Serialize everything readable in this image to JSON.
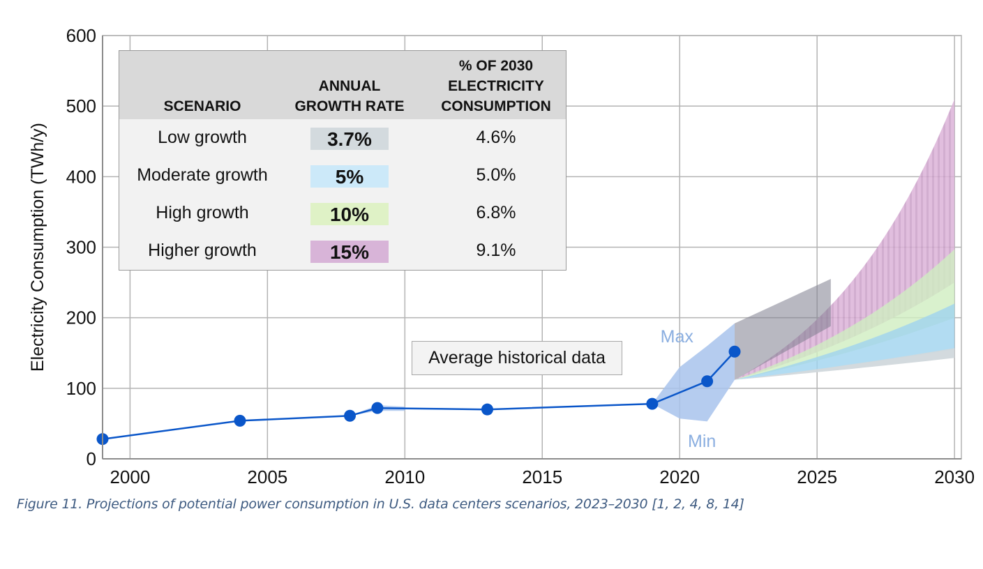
{
  "chart_data": {
    "type": "line",
    "caption": "Figure 11. Projections of potential power consumption in U.S. data centers scenarios, 2023–2030 [1, 2, 4, 8, 14]",
    "ylabel": "Electricity Consumption (TWh/y)",
    "xlim": [
      1999,
      2030.25
    ],
    "ylim": [
      0,
      600
    ],
    "x_ticks": [
      {
        "value": 2000,
        "label": "2000"
      },
      {
        "value": 2005,
        "label": "2005"
      },
      {
        "value": 2010,
        "label": "2010"
      },
      {
        "value": 2015,
        "label": "2015"
      },
      {
        "value": 2020,
        "label": "2020"
      },
      {
        "value": 2025,
        "label": "2025"
      },
      {
        "value": 2030,
        "label": "2030"
      }
    ],
    "y_ticks": [
      {
        "value": 0,
        "label": "0"
      },
      {
        "value": 100,
        "label": "100"
      },
      {
        "value": 200,
        "label": "200"
      },
      {
        "value": 300,
        "label": "300"
      },
      {
        "value": 400,
        "label": "400"
      },
      {
        "value": 500,
        "label": "500"
      },
      {
        "value": 600,
        "label": "600"
      }
    ],
    "grid": true,
    "historical": {
      "name": "Average historical data",
      "color": "#0a56c9",
      "points": [
        {
          "x": 1999,
          "y": 28
        },
        {
          "x": 2004,
          "y": 54
        },
        {
          "x": 2008,
          "y": 61
        },
        {
          "x": 2009,
          "y": 72
        },
        {
          "x": 2013,
          "y": 70
        },
        {
          "x": 2019,
          "y": 78
        },
        {
          "x": 2021,
          "y": 110
        },
        {
          "x": 2022,
          "y": 152
        }
      ]
    },
    "small_band": {
      "color": "#b4cbef",
      "x": [
        2008,
        2009,
        2010
      ],
      "low": [
        61,
        68,
        68
      ],
      "high": [
        61,
        76,
        74
      ]
    },
    "uncertainty_band": {
      "color": "#a8c3ec",
      "max_label": "Max",
      "min_label": "Min",
      "x": [
        2019,
        2020,
        2021,
        2022
      ],
      "low": [
        78,
        57,
        53,
        112
      ],
      "high": [
        78,
        130,
        160,
        192
      ]
    },
    "scenarios": [
      {
        "name": "Low growth",
        "rate": "3.7%",
        "share_2030": "4.6%",
        "color": "#d1d8dc",
        "x": [
          2022,
          2030
        ],
        "low": [
          112,
          143
        ],
        "high": [
          112,
          157
        ]
      },
      {
        "name": "Moderate growth",
        "rate": "5%",
        "share_2030": "5.0%",
        "color": "#9fd3ef",
        "x": [
          2022,
          2030
        ],
        "low": [
          112,
          155
        ],
        "high": [
          112,
          220
        ]
      },
      {
        "name": "High growth",
        "rate": "10%",
        "share_2030": "6.8%",
        "color": "#d0eec0",
        "x": [
          2022,
          2030
        ],
        "low": [
          112,
          200
        ],
        "high": [
          112,
          297
        ]
      },
      {
        "name": "Higher growth",
        "rate": "15%",
        "share_2030": "9.1%",
        "color": "#e0b8da",
        "x": [
          2022,
          2030
        ],
        "low": [
          112,
          250
        ],
        "high": [
          112,
          510
        ]
      }
    ],
    "gray_overlay": {
      "color": "#7e7e8e",
      "x": [
        2022,
        2025.5
      ],
      "low": [
        112,
        188
      ],
      "high": [
        192,
        255
      ]
    }
  },
  "legend_table": {
    "headers": {
      "scenario": "SCENARIO",
      "rate_line1": "ANNUAL",
      "rate_line2": "GROWTH RATE",
      "share_line1": "% OF 2030",
      "share_line2": "ELECTRICITY",
      "share_line3": "CONSUMPTION"
    },
    "rows": [
      {
        "scenario": "Low growth",
        "rate": "3.7%",
        "share": "4.6%",
        "swatch": "#d3dade"
      },
      {
        "scenario": "Moderate growth",
        "rate": "5%",
        "share": "5.0%",
        "swatch": "#cce9f9"
      },
      {
        "scenario": "High growth",
        "rate": "10%",
        "share": "6.8%",
        "swatch": "#dff2c6"
      },
      {
        "scenario": "Higher growth",
        "rate": "15%",
        "share": "9.1%",
        "swatch": "#d8b4d8"
      }
    ]
  },
  "historical_label": "Average historical data",
  "caption": "Figure 11. Projections of potential power consumption in U.S. data centers scenarios, 2023–2030 [1, 2, 4, 8, 14]"
}
